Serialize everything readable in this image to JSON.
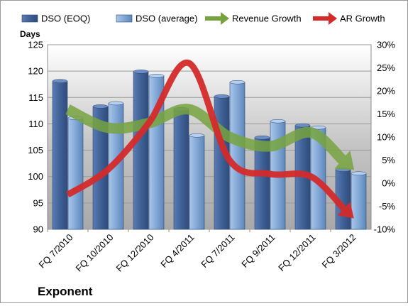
{
  "chart_data": {
    "type": "bar",
    "company": "Exponent",
    "ylabel_left": "Days",
    "categories": [
      "FQ 7/2010",
      "FQ 10/2010",
      "FQ 12/2010",
      "FQ 4/2011",
      "FQ 7/2011",
      "FQ 9/2011",
      "FQ 12/2011",
      "FQ 3/2012"
    ],
    "left_axis": {
      "min": 90,
      "max": 125,
      "step": 5,
      "ticks": [
        "90",
        "95",
        "100",
        "105",
        "110",
        "115",
        "120",
        "125"
      ]
    },
    "right_axis": {
      "min": -10,
      "max": 30,
      "step": 5,
      "ticks": [
        "-10%",
        "-5%",
        "0%",
        "5%",
        "10%",
        "15%",
        "20%",
        "25%",
        "30%"
      ]
    },
    "series": [
      {
        "name": "DSO (EOQ)",
        "kind": "bar",
        "axis": "left",
        "color": "#4a6aa0",
        "values": [
          118.1,
          113.3,
          119.9,
          112.8,
          115.2,
          107.4,
          109.7,
          101.3
        ]
      },
      {
        "name": "DSO (average)",
        "kind": "bar",
        "axis": "left",
        "color": "#8fb2dc",
        "values": [
          111.1,
          113.9,
          119.1,
          107.8,
          117.9,
          110.5,
          109.3,
          100.6
        ]
      },
      {
        "name": "Revenue Growth",
        "kind": "line",
        "axis": "right",
        "color": "#77a33f",
        "values": [
          16,
          12,
          13,
          16,
          10,
          8,
          11,
          3.5
        ]
      },
      {
        "name": "AR Growth",
        "kind": "line",
        "axis": "right",
        "color": "#d42a2a",
        "values": [
          -2.5,
          3,
          13,
          26,
          5,
          2,
          1.5,
          -7
        ]
      }
    ],
    "grid": true,
    "legend_position": "top"
  }
}
